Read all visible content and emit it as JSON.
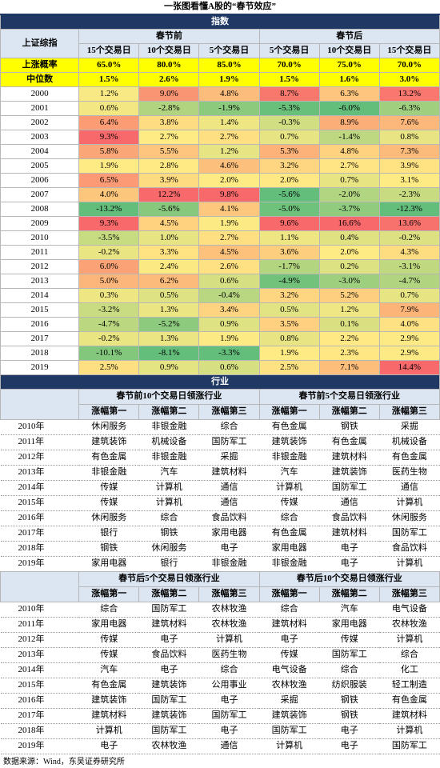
{
  "title": "一张图看懂A股的“春节效应”",
  "index_section": {
    "label": "指数",
    "corner": "上证综指",
    "groups": [
      "春节前",
      "春节后"
    ],
    "periods": [
      "15个交易日",
      "10个交易日",
      "5个交易日",
      "5个交易日",
      "10个交易日",
      "15个交易日"
    ],
    "summary": [
      {
        "label": "上涨概率",
        "cells": [
          "65.0%",
          "80.0%",
          "85.0%",
          "70.0%",
          "75.0%",
          "70.0%"
        ]
      },
      {
        "label": "中位数",
        "cells": [
          "1.5%",
          "2.6%",
          "1.9%",
          "1.5%",
          "1.6%",
          "3.0%"
        ]
      }
    ],
    "rows": [
      {
        "year": "2000",
        "cells": [
          "1.2%",
          "9.0%",
          "4.8%",
          "8.7%",
          "6.3%",
          "13.2%"
        ]
      },
      {
        "year": "2001",
        "cells": [
          "0.6%",
          "-2.8%",
          "-1.9%",
          "-5.3%",
          "-6.0%",
          "-6.3%"
        ]
      },
      {
        "year": "2002",
        "cells": [
          "6.4%",
          "3.8%",
          "1.4%",
          "-0.3%",
          "8.9%",
          "7.6%"
        ]
      },
      {
        "year": "2003",
        "cells": [
          "9.3%",
          "2.7%",
          "2.7%",
          "0.7%",
          "-1.4%",
          "0.8%"
        ]
      },
      {
        "year": "2004",
        "cells": [
          "5.8%",
          "5.5%",
          "1.2%",
          "5.3%",
          "4.8%",
          "7.3%"
        ]
      },
      {
        "year": "2005",
        "cells": [
          "1.9%",
          "2.8%",
          "4.6%",
          "3.2%",
          "2.7%",
          "3.9%"
        ]
      },
      {
        "year": "2006",
        "cells": [
          "6.5%",
          "3.9%",
          "2.0%",
          "2.0%",
          "0.7%",
          "3.1%"
        ]
      },
      {
        "year": "2007",
        "cells": [
          "4.0%",
          "12.2%",
          "9.8%",
          "-5.6%",
          "-2.0%",
          "-2.3%"
        ]
      },
      {
        "year": "2008",
        "cells": [
          "-13.2%",
          "-5.6%",
          "4.1%",
          "-5.0%",
          "-3.7%",
          "-12.3%"
        ]
      },
      {
        "year": "2009",
        "cells": [
          "9.3%",
          "4.5%",
          "1.9%",
          "9.6%",
          "16.6%",
          "13.6%"
        ]
      },
      {
        "year": "2010",
        "cells": [
          "-3.5%",
          "1.0%",
          "2.7%",
          "1.1%",
          "0.4%",
          "-0.2%"
        ]
      },
      {
        "year": "2011",
        "cells": [
          "-0.2%",
          "3.3%",
          "4.5%",
          "3.6%",
          "2.0%",
          "4.3%"
        ]
      },
      {
        "year": "2012",
        "cells": [
          "6.0%",
          "2.4%",
          "2.6%",
          "-1.7%",
          "0.2%",
          "-3.1%"
        ]
      },
      {
        "year": "2013",
        "cells": [
          "5.0%",
          "6.2%",
          "0.6%",
          "-4.9%",
          "-3.0%",
          "-4.7%"
        ]
      },
      {
        "year": "2014",
        "cells": [
          "0.3%",
          "0.5%",
          "-0.4%",
          "3.2%",
          "5.2%",
          "0.7%"
        ]
      },
      {
        "year": "2015",
        "cells": [
          "-3.2%",
          "1.3%",
          "3.4%",
          "0.5%",
          "1.2%",
          "7.9%"
        ]
      },
      {
        "year": "2016",
        "cells": [
          "-4.7%",
          "-5.2%",
          "0.9%",
          "3.5%",
          "0.1%",
          "4.0%"
        ]
      },
      {
        "year": "2017",
        "cells": [
          "-0.2%",
          "1.3%",
          "1.9%",
          "0.8%",
          "2.2%",
          "2.9%"
        ]
      },
      {
        "year": "2018",
        "cells": [
          "-10.1%",
          "-8.1%",
          "-3.3%",
          "1.9%",
          "2.3%",
          "2.9%"
        ]
      },
      {
        "year": "2019",
        "cells": [
          "2.5%",
          "0.9%",
          "0.6%",
          "2.5%",
          "7.1%",
          "14.4%"
        ]
      }
    ]
  },
  "industry_section": {
    "label": "行业",
    "ranks": [
      "涨幅第一",
      "涨幅第二",
      "涨幅第三"
    ],
    "blocks": [
      {
        "groups": [
          "春节前10个交易日领涨行业",
          "春节前5个交易日领涨行业"
        ],
        "rows": [
          {
            "year": "2010年",
            "cells": [
              "休闲服务",
              "非银金融",
              "综合",
              "有色金属",
              "钢铁",
              "采掘"
            ]
          },
          {
            "year": "2011年",
            "cells": [
              "建筑装饰",
              "机械设备",
              "国防军工",
              "建筑装饰",
              "有色金属",
              "机械设备"
            ]
          },
          {
            "year": "2012年",
            "cells": [
              "有色金属",
              "非银金融",
              "采掘",
              "非银金融",
              "建筑材料",
              "有色金属"
            ]
          },
          {
            "year": "2013年",
            "cells": [
              "非银金融",
              "汽车",
              "建筑材料",
              "汽车",
              "建筑装饰",
              "医药生物"
            ]
          },
          {
            "year": "2014年",
            "cells": [
              "传媒",
              "计算机",
              "通信",
              "计算机",
              "国防军工",
              "通信"
            ]
          },
          {
            "year": "2015年",
            "cells": [
              "传媒",
              "计算机",
              "通信",
              "传媒",
              "通信",
              "计算机"
            ]
          },
          {
            "year": "2016年",
            "cells": [
              "休闲服务",
              "综合",
              "食品饮料",
              "综合",
              "食品饮料",
              "休闲服务"
            ]
          },
          {
            "year": "2017年",
            "cells": [
              "银行",
              "钢铁",
              "家用电器",
              "有色金属",
              "建筑材料",
              "国防军工"
            ]
          },
          {
            "year": "2018年",
            "cells": [
              "钢铁",
              "休闲服务",
              "电子",
              "家用电器",
              "电子",
              "食品饮料"
            ]
          },
          {
            "year": "2019年",
            "cells": [
              "家用电器",
              "银行",
              "非银金融",
              "非银金融",
              "电子",
              "计算机"
            ]
          }
        ]
      },
      {
        "groups": [
          "春节后5个交易日领涨行业",
          "春节后10个交易日领涨行业"
        ],
        "rows": [
          {
            "year": "2010年",
            "cells": [
              "综合",
              "国防军工",
              "农林牧渔",
              "综合",
              "汽车",
              "电气设备"
            ]
          },
          {
            "year": "2011年",
            "cells": [
              "家用电器",
              "建筑材料",
              "农林牧渔",
              "建筑材料",
              "家用电器",
              "农林牧渔"
            ]
          },
          {
            "year": "2012年",
            "cells": [
              "传媒",
              "电子",
              "计算机",
              "电子",
              "传媒",
              "计算机"
            ]
          },
          {
            "year": "2013年",
            "cells": [
              "传媒",
              "食品饮料",
              "医药生物",
              "传媒",
              "国防军工",
              "综合"
            ]
          },
          {
            "year": "2014年",
            "cells": [
              "汽车",
              "电子",
              "综合",
              "电气设备",
              "综合",
              "化工"
            ]
          },
          {
            "year": "2015年",
            "cells": [
              "有色金属",
              "建筑装饰",
              "公用事业",
              "农林牧渔",
              "纺织服装",
              "轻工制造"
            ]
          },
          {
            "year": "2016年",
            "cells": [
              "建筑装饰",
              "国防军工",
              "电子",
              "采掘",
              "钢铁",
              "有色金属"
            ]
          },
          {
            "year": "2017年",
            "cells": [
              "建筑材料",
              "建筑装饰",
              "国防军工",
              "建筑装饰",
              "钢铁",
              "建筑材料"
            ]
          },
          {
            "year": "2018年",
            "cells": [
              "计算机",
              "国防军工",
              "电子",
              "国防军工",
              "电子",
              "计算机"
            ]
          },
          {
            "year": "2019年",
            "cells": [
              "电子",
              "农林牧渔",
              "通信",
              "计算机",
              "电子",
              "国防军工"
            ]
          }
        ]
      }
    ]
  },
  "source": "数据来源：Wind，东吴证券研究所"
}
